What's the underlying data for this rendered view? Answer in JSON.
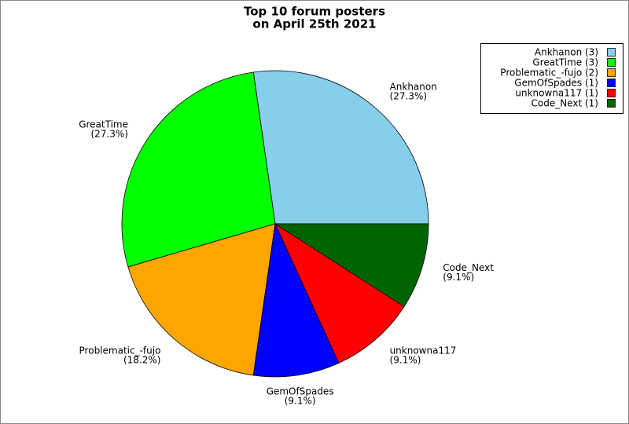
{
  "chart_data": {
    "type": "pie",
    "title": [
      "Top 10 forum posters",
      "on April 25th 2021"
    ],
    "categories": [
      "Ankhanon",
      "GreatTime",
      "Problematic_-fujo",
      "GemOfSpades",
      "unknowna117",
      "Code_Next"
    ],
    "values": [
      3,
      3,
      2,
      1,
      1,
      1
    ],
    "percent_labels": [
      "(27.3%)",
      "(27.3%)",
      "(18.2%)",
      "(9.1%)",
      "(9.1%)",
      "(9.1%)"
    ],
    "legend_labels": [
      "Ankhanon (3)",
      "GreatTime (3)",
      "Problematic_-fujo (2)",
      "GemOfSpades (1)",
      "unknowna117 (1)",
      "Code_Next (1)"
    ],
    "colors": [
      "#87ceeb",
      "#00ff00",
      "#ffa500",
      "#0000ff",
      "#ff0000",
      "#006400"
    ],
    "legend": "top-right"
  }
}
